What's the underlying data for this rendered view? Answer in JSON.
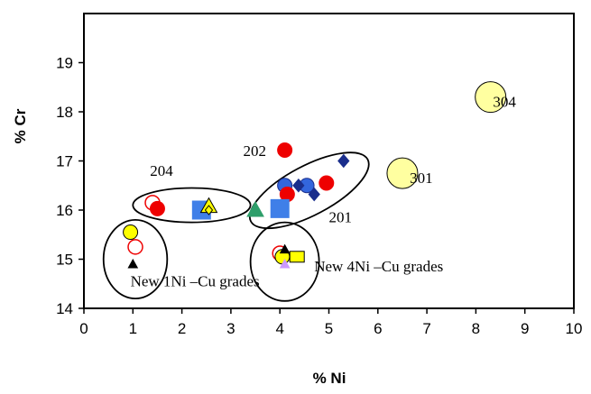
{
  "chart_data": {
    "type": "scatter",
    "xlabel": "% Ni",
    "ylabel": "% Cr",
    "xlim": [
      0,
      10
    ],
    "ylim": [
      14,
      20
    ],
    "x_ticks": [
      "0",
      "1",
      "2",
      "3",
      "4",
      "5",
      "6",
      "7",
      "8",
      "9",
      "10"
    ],
    "y_ticks": [
      "14",
      "15",
      "16",
      "17",
      "18",
      "19"
    ],
    "grid": false,
    "points": [
      {
        "x": 8.3,
        "y": 18.3,
        "marker": "circle-large",
        "fill": "#FFFFA0",
        "stroke": "#000000"
      },
      {
        "x": 6.5,
        "y": 16.75,
        "marker": "circle-large",
        "fill": "#FFFFA0",
        "stroke": "#000000"
      },
      {
        "x": 4.1,
        "y": 17.22,
        "marker": "circle",
        "fill": "#EE0000",
        "stroke": "#EE0000"
      },
      {
        "x": 5.3,
        "y": 17.0,
        "marker": "diamond",
        "fill": "#1A2E8C",
        "stroke": "#1A2E8C"
      },
      {
        "x": 4.95,
        "y": 16.55,
        "marker": "circle",
        "fill": "#EE0000",
        "stroke": "#EE0000"
      },
      {
        "x": 4.1,
        "y": 16.5,
        "marker": "circle",
        "fill": "#3366DD",
        "stroke": "#1A2E8C"
      },
      {
        "x": 4.55,
        "y": 16.5,
        "marker": "circle",
        "fill": "#3366DD",
        "stroke": "#1A2E8C"
      },
      {
        "x": 4.38,
        "y": 16.5,
        "marker": "diamond",
        "fill": "#1A2E8C",
        "stroke": "#1A2E8C"
      },
      {
        "x": 4.7,
        "y": 16.32,
        "marker": "diamond",
        "fill": "#1A2E8C",
        "stroke": "#1A2E8C"
      },
      {
        "x": 4.15,
        "y": 16.32,
        "marker": "circle",
        "fill": "#EE0000",
        "stroke": "#EE0000"
      },
      {
        "x": 4.0,
        "y": 16.03,
        "marker": "square-large",
        "fill": "#3F7FE8",
        "stroke": "#3F7FE8"
      },
      {
        "x": 3.5,
        "y": 16.0,
        "marker": "triangle",
        "fill": "#2E9E6A",
        "stroke": "#2E9E6A"
      },
      {
        "x": 1.4,
        "y": 16.15,
        "marker": "circle-open",
        "fill": "#FFFFFF",
        "stroke": "#EE0000"
      },
      {
        "x": 1.5,
        "y": 16.03,
        "marker": "circle",
        "fill": "#EE0000",
        "stroke": "#EE0000"
      },
      {
        "x": 2.4,
        "y": 16.0,
        "marker": "square-large",
        "fill": "#3F7FE8",
        "stroke": "#3F7FE8"
      },
      {
        "x": 2.55,
        "y": 16.08,
        "marker": "triangle",
        "fill": "#FFFF00",
        "stroke": "#000000"
      },
      {
        "x": 2.55,
        "y": 16.0,
        "marker": "diamond-small",
        "fill": "#FFFF00",
        "stroke": "#000000"
      },
      {
        "x": 0.95,
        "y": 15.55,
        "marker": "circle",
        "fill": "#FFFF00",
        "stroke": "#000000"
      },
      {
        "x": 1.05,
        "y": 15.25,
        "marker": "circle-open",
        "fill": "#FFFFFF",
        "stroke": "#EE0000"
      },
      {
        "x": 1.0,
        "y": 14.9,
        "marker": "triangle-small",
        "fill": "#000000",
        "stroke": "#000000"
      },
      {
        "x": 4.0,
        "y": 15.12,
        "marker": "circle-open",
        "fill": "#FFFFFF",
        "stroke": "#EE0000"
      },
      {
        "x": 4.35,
        "y": 15.05,
        "marker": "square",
        "fill": "#FFFF00",
        "stroke": "#000000"
      },
      {
        "x": 4.05,
        "y": 15.05,
        "marker": "circle",
        "fill": "#FFFF00",
        "stroke": "#000000"
      },
      {
        "x": 4.1,
        "y": 15.2,
        "marker": "triangle-small",
        "fill": "#000000",
        "stroke": "#000000"
      },
      {
        "x": 4.1,
        "y": 14.9,
        "marker": "triangle-small",
        "fill": "#CC99FF",
        "stroke": "#CC99FF"
      }
    ],
    "groups": [
      {
        "cx": 2.2,
        "cy": 16.1,
        "rx": 1.2,
        "ry": 0.35,
        "rotate": 0
      },
      {
        "cx": 4.6,
        "cy": 16.4,
        "rx": 1.35,
        "ry": 0.5,
        "rotate": -28
      },
      {
        "cx": 1.05,
        "cy": 15.0,
        "rx": 0.65,
        "ry": 0.8,
        "rotate": 0
      },
      {
        "cx": 4.1,
        "cy": 14.95,
        "rx": 0.7,
        "ry": 0.8,
        "rotate": 0
      }
    ],
    "annotations": [
      {
        "text": "304",
        "x": 8.35,
        "y": 18.1,
        "anchor": "start"
      },
      {
        "text": "301",
        "x": 6.65,
        "y": 16.55,
        "anchor": "start"
      },
      {
        "text": "202",
        "x": 3.25,
        "y": 17.1,
        "anchor": "start"
      },
      {
        "text": "204",
        "x": 1.35,
        "y": 16.7,
        "anchor": "start"
      },
      {
        "text": "201",
        "x": 5.0,
        "y": 15.75,
        "anchor": "start"
      },
      {
        "text": "New 4Ni –Cu grades",
        "x": 4.7,
        "y": 14.75,
        "anchor": "start"
      },
      {
        "text": "New 1Ni –Cu grades",
        "x": 0.95,
        "y": 14.45,
        "anchor": "start"
      }
    ]
  }
}
